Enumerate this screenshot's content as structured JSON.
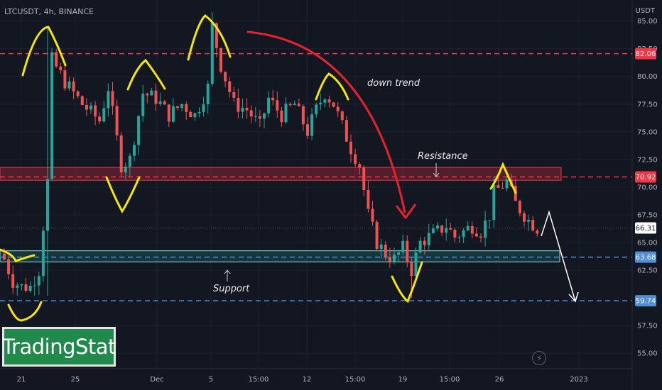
{
  "header": {
    "symbol": "LTCUSDT, 4h, BINANCE",
    "currency": "USDT"
  },
  "watermark": {
    "text": "TradingStat"
  },
  "annotations": {
    "down_trend": "down trend",
    "resistance": "Resistance",
    "support": "Support",
    "bolt_icon": "lightning-icon"
  },
  "colors": {
    "background": "#131722",
    "up_candle": "#26a69a",
    "down_candle": "#ef5350",
    "resistance_line": "#f23645",
    "support_line": "#2962ff",
    "yellow_markup": "#f5e50a",
    "red_arrow": "#e8222b",
    "white_arrow": "#ffffff"
  },
  "chart_data": {
    "type": "candlestick",
    "title": "LTCUSDT, 4h, BINANCE",
    "ylabel": "USDT",
    "ylim": [
      53.6,
      86.9
    ],
    "y_ticks": [
      "85.00",
      "82.50",
      "80.00",
      "77.50",
      "75.00",
      "72.50",
      "70.00",
      "67.50",
      "65.00",
      "62.50",
      "57.50",
      "55.00"
    ],
    "x_ticks": [
      "21",
      "25",
      "Dec",
      "5",
      "15:00",
      "12",
      "15:00",
      "19",
      "15:00",
      "26",
      "2023"
    ],
    "price_tags": [
      {
        "label": "82.06",
        "value": 82.06,
        "kind": "resistance"
      },
      {
        "label": "70.92",
        "value": 70.92,
        "kind": "resistance"
      },
      {
        "label": "66.31",
        "value": 66.31,
        "kind": "current"
      },
      {
        "label": "63.68",
        "value": 63.68,
        "kind": "support"
      },
      {
        "label": "59.74",
        "value": 59.74,
        "kind": "support"
      }
    ],
    "zones": [
      {
        "name": "Resistance",
        "from": 70.62,
        "to": 71.78
      },
      {
        "name": "Support",
        "from": 63.25,
        "to": 64.25
      }
    ],
    "close_path": [
      [
        0,
        63.5
      ],
      [
        2,
        61.5
      ],
      [
        4,
        61.0
      ],
      [
        6,
        61.0
      ],
      [
        8,
        62.5
      ],
      [
        10,
        70.5
      ],
      [
        11,
        81.5
      ],
      [
        14,
        79.5
      ],
      [
        18,
        77.5
      ],
      [
        22,
        76.0
      ],
      [
        24,
        79.0
      ],
      [
        27,
        72.0
      ],
      [
        29,
        72.5
      ],
      [
        32,
        78.5
      ],
      [
        35,
        78.0
      ],
      [
        38,
        76.5
      ],
      [
        41,
        77.5
      ],
      [
        44,
        76.5
      ],
      [
        47,
        79.0
      ],
      [
        48,
        84.5
      ],
      [
        50,
        81.0
      ],
      [
        53,
        77.5
      ],
      [
        56,
        77.0
      ],
      [
        59,
        75.5
      ],
      [
        61,
        78.0
      ],
      [
        64,
        76.5
      ],
      [
        67,
        77.5
      ],
      [
        70,
        75.0
      ],
      [
        72,
        77.0
      ],
      [
        74,
        78.5
      ],
      [
        76,
        77.5
      ],
      [
        78,
        75.5
      ],
      [
        80,
        73.5
      ],
      [
        82,
        72.0
      ],
      [
        84,
        67.5
      ],
      [
        86,
        65.0
      ],
      [
        88,
        64.0
      ],
      [
        90,
        63.5
      ],
      [
        92,
        64.5
      ],
      [
        94,
        62.5
      ],
      [
        96,
        65.0
      ],
      [
        98,
        65.5
      ],
      [
        100,
        66.0
      ],
      [
        102,
        66.5
      ],
      [
        104,
        65.5
      ],
      [
        106,
        66.0
      ],
      [
        108,
        66.5
      ],
      [
        110,
        66.0
      ],
      [
        112,
        67.5
      ],
      [
        113,
        69.5
      ],
      [
        116,
        70.5
      ],
      [
        118,
        68.5
      ],
      [
        121,
        67.0
      ],
      [
        123,
        66.3
      ]
    ]
  }
}
